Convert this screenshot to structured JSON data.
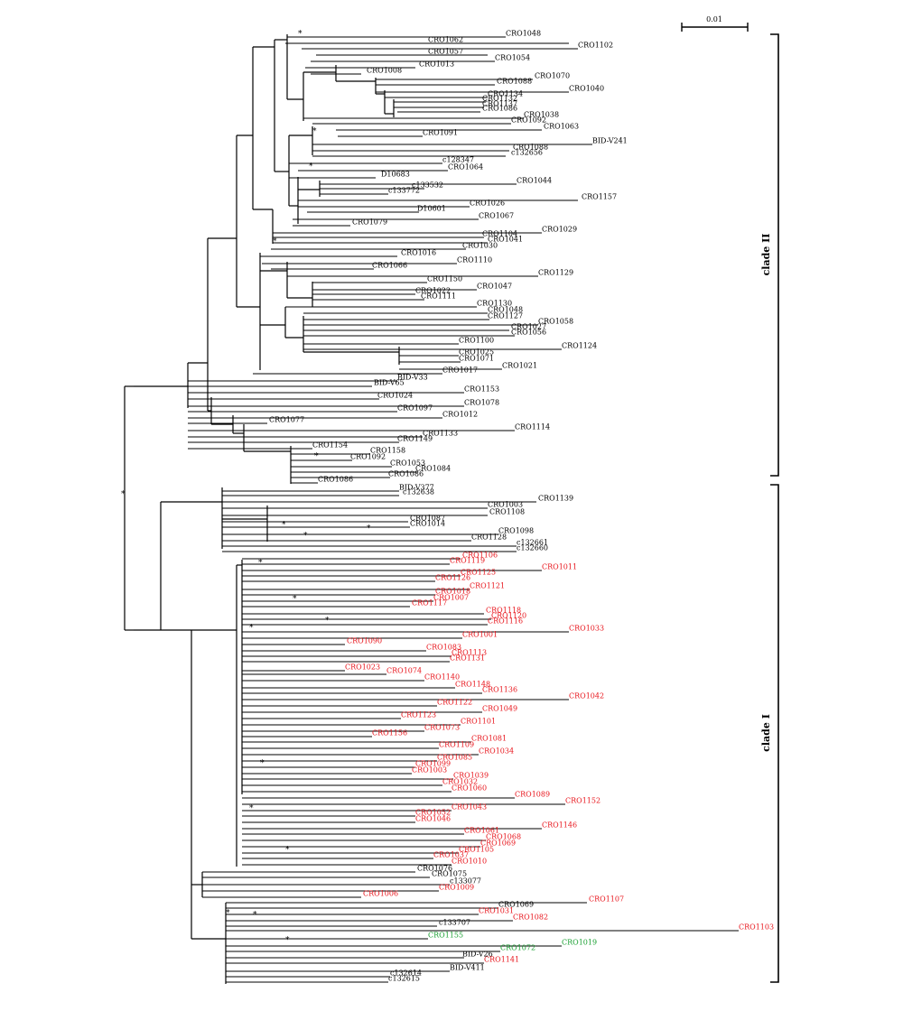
{
  "scale_bar": {
    "label": "0.01"
  },
  "clades": [
    {
      "label": "clade II"
    },
    {
      "label": "clade I"
    }
  ],
  "support_marker": "*",
  "colors": {
    "black": "#000000",
    "red": "#e8141b",
    "green": "#1aa032"
  },
  "leaves": [
    {
      "label": "CRO1048",
      "color": "black"
    },
    {
      "label": "CRO1062",
      "color": "black"
    },
    {
      "label": "CRO1102",
      "color": "black"
    },
    {
      "label": "CRO1057",
      "color": "black"
    },
    {
      "label": "CRO1054",
      "color": "black"
    },
    {
      "label": "CRO1013",
      "color": "black"
    },
    {
      "label": "CRO1008",
      "color": "black"
    },
    {
      "label": "CRO1070",
      "color": "black"
    },
    {
      "label": "CRO1088",
      "color": "black"
    },
    {
      "label": "CRO1040",
      "color": "black"
    },
    {
      "label": "CRO1134",
      "color": "black"
    },
    {
      "label": "CRO1132",
      "color": "black"
    },
    {
      "label": "CRO1137",
      "color": "black"
    },
    {
      "label": "CRO1086",
      "color": "black"
    },
    {
      "label": "CRO1038",
      "color": "black"
    },
    {
      "label": "CRO1092",
      "color": "black"
    },
    {
      "label": "CRO1063",
      "color": "black"
    },
    {
      "label": "CRO1091",
      "color": "black"
    },
    {
      "label": "BID-V241",
      "color": "black"
    },
    {
      "label": "CRO1088",
      "color": "black"
    },
    {
      "label": "c132656",
      "color": "black"
    },
    {
      "label": "c128347",
      "color": "black"
    },
    {
      "label": "CRO1064",
      "color": "black"
    },
    {
      "label": "D10683",
      "color": "black"
    },
    {
      "label": "CRO1044",
      "color": "black"
    },
    {
      "label": "c133532",
      "color": "black"
    },
    {
      "label": "c133772",
      "color": "black"
    },
    {
      "label": "CRO1157",
      "color": "black"
    },
    {
      "label": "CRO1026",
      "color": "black"
    },
    {
      "label": "D10601",
      "color": "black"
    },
    {
      "label": "CRO1067",
      "color": "black"
    },
    {
      "label": "CRO1079",
      "color": "black"
    },
    {
      "label": "CRO1029",
      "color": "black"
    },
    {
      "label": "CRO1104",
      "color": "black"
    },
    {
      "label": "CRO1041",
      "color": "black"
    },
    {
      "label": "CRO1030",
      "color": "black"
    },
    {
      "label": "CRO1016",
      "color": "black"
    },
    {
      "label": "CRO1110",
      "color": "black"
    },
    {
      "label": "CRO1066",
      "color": "black"
    },
    {
      "label": "CRO1129",
      "color": "black"
    },
    {
      "label": "CRO1150",
      "color": "black"
    },
    {
      "label": "CRO1047",
      "color": "black"
    },
    {
      "label": "CRO1022",
      "color": "black"
    },
    {
      "label": "CRO1111",
      "color": "black"
    },
    {
      "label": "CRO1130",
      "color": "black"
    },
    {
      "label": "CRO1048",
      "color": "black"
    },
    {
      "label": "CRO1127",
      "color": "black"
    },
    {
      "label": "CRO1058",
      "color": "black"
    },
    {
      "label": "CRO1027",
      "color": "black"
    },
    {
      "label": "CRO1056",
      "color": "black"
    },
    {
      "label": "CRO1100",
      "color": "black"
    },
    {
      "label": "CRO1124",
      "color": "black"
    },
    {
      "label": "CRO1025",
      "color": "black"
    },
    {
      "label": "CRO1071",
      "color": "black"
    },
    {
      "label": "CRO1021",
      "color": "black"
    },
    {
      "label": "CRO1017",
      "color": "black"
    },
    {
      "label": "BID-V33",
      "color": "black"
    },
    {
      "label": "BID-V65",
      "color": "black"
    },
    {
      "label": "CRO1153",
      "color": "black"
    },
    {
      "label": "CRO1024",
      "color": "black"
    },
    {
      "label": "CRO1078",
      "color": "black"
    },
    {
      "label": "CRO1097",
      "color": "black"
    },
    {
      "label": "CRO1012",
      "color": "black"
    },
    {
      "label": "CRO1077",
      "color": "black"
    },
    {
      "label": "CRO1114",
      "color": "black"
    },
    {
      "label": "CRO1133",
      "color": "black"
    },
    {
      "label": "CRO1149",
      "color": "black"
    },
    {
      "label": "CRO1154",
      "color": "black"
    },
    {
      "label": "CRO1158",
      "color": "black"
    },
    {
      "label": "CRO1092",
      "color": "black"
    },
    {
      "label": "CRO1053",
      "color": "black"
    },
    {
      "label": "CRO1084",
      "color": "black"
    },
    {
      "label": "CRO1086",
      "color": "black"
    },
    {
      "label": "CRO1086",
      "color": "black"
    },
    {
      "label": "BID-V377",
      "color": "black"
    },
    {
      "label": "c132638",
      "color": "black"
    },
    {
      "label": "CRO1139",
      "color": "black"
    },
    {
      "label": "CRO1003",
      "color": "black"
    },
    {
      "label": "CRO1108",
      "color": "black"
    },
    {
      "label": "CRO1087",
      "color": "black"
    },
    {
      "label": "CRO1014",
      "color": "black"
    },
    {
      "label": "CRO1098",
      "color": "black"
    },
    {
      "label": "CRO1128",
      "color": "black"
    },
    {
      "label": "c132661",
      "color": "black"
    },
    {
      "label": "c132660",
      "color": "black"
    },
    {
      "label": "CRO1106",
      "color": "red"
    },
    {
      "label": "CRO1119",
      "color": "red"
    },
    {
      "label": "CRO1011",
      "color": "red"
    },
    {
      "label": "CRO1125",
      "color": "red"
    },
    {
      "label": "CRO1126",
      "color": "red"
    },
    {
      "label": "CRO1121",
      "color": "red"
    },
    {
      "label": "CRO1018",
      "color": "red"
    },
    {
      "label": "CRO1007",
      "color": "red"
    },
    {
      "label": "CRO1117",
      "color": "red"
    },
    {
      "label": "CRO1118",
      "color": "red"
    },
    {
      "label": "CRO1120",
      "color": "red"
    },
    {
      "label": "CRO1116",
      "color": "red"
    },
    {
      "label": "CRO1033",
      "color": "red"
    },
    {
      "label": "CRO1001",
      "color": "red"
    },
    {
      "label": "CRO1090",
      "color": "red"
    },
    {
      "label": "CRO1083",
      "color": "red"
    },
    {
      "label": "CRO1113",
      "color": "red"
    },
    {
      "label": "CRO1131",
      "color": "red"
    },
    {
      "label": "CRO1023",
      "color": "red"
    },
    {
      "label": "CRO1074",
      "color": "red"
    },
    {
      "label": "CRO1140",
      "color": "red"
    },
    {
      "label": "CRO1148",
      "color": "red"
    },
    {
      "label": "CRO1136",
      "color": "red"
    },
    {
      "label": "CRO1042",
      "color": "red"
    },
    {
      "label": "CRO1122",
      "color": "red"
    },
    {
      "label": "CRO1049",
      "color": "red"
    },
    {
      "label": "CRO1123",
      "color": "red"
    },
    {
      "label": "CRO1101",
      "color": "red"
    },
    {
      "label": "CRO1073",
      "color": "red"
    },
    {
      "label": "CRO1156",
      "color": "red"
    },
    {
      "label": "CRO1081",
      "color": "red"
    },
    {
      "label": "CRO1109",
      "color": "red"
    },
    {
      "label": "CRO1034",
      "color": "red"
    },
    {
      "label": "CRO1085",
      "color": "red"
    },
    {
      "label": "CRO1099",
      "color": "red"
    },
    {
      "label": "CRO1003",
      "color": "red"
    },
    {
      "label": "CRO1039",
      "color": "red"
    },
    {
      "label": "CRO1032",
      "color": "red"
    },
    {
      "label": "CRO1060",
      "color": "red"
    },
    {
      "label": "CRO1089",
      "color": "red"
    },
    {
      "label": "CRO1152",
      "color": "red"
    },
    {
      "label": "CRO1043",
      "color": "red"
    },
    {
      "label": "CRO1052",
      "color": "red"
    },
    {
      "label": "CRO1046",
      "color": "red"
    },
    {
      "label": "CRO1146",
      "color": "red"
    },
    {
      "label": "CRO1061",
      "color": "red"
    },
    {
      "label": "CRO1068",
      "color": "red"
    },
    {
      "label": "CRO1069",
      "color": "red"
    },
    {
      "label": "CRO1105",
      "color": "red"
    },
    {
      "label": "CRO1037",
      "color": "red"
    },
    {
      "label": "CRO1010",
      "color": "red"
    },
    {
      "label": "CRO1076",
      "color": "black"
    },
    {
      "label": "CRO1075",
      "color": "black"
    },
    {
      "label": "c133077",
      "color": "black"
    },
    {
      "label": "CRO1009",
      "color": "red"
    },
    {
      "label": "CRO1006",
      "color": "red"
    },
    {
      "label": "CRO1107",
      "color": "red"
    },
    {
      "label": "CRO1069",
      "color": "black"
    },
    {
      "label": "CRO1031",
      "color": "red"
    },
    {
      "label": "CRO1082",
      "color": "red"
    },
    {
      "label": "c133707",
      "color": "black"
    },
    {
      "label": "CRO1103",
      "color": "red"
    },
    {
      "label": "CRO1155",
      "color": "green"
    },
    {
      "label": "CRO1019",
      "color": "green"
    },
    {
      "label": "CRO1072",
      "color": "green"
    },
    {
      "label": "BID-V26",
      "color": "black"
    },
    {
      "label": "CRO1141",
      "color": "red"
    },
    {
      "label": "BID-V411",
      "color": "black"
    },
    {
      "label": "c132614",
      "color": "black"
    },
    {
      "label": "c132615",
      "color": "black"
    }
  ]
}
